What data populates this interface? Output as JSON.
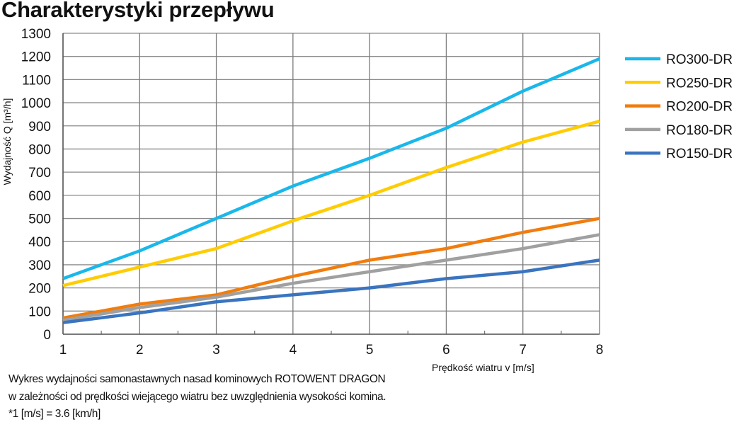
{
  "title": "Charakterystyki przepływu",
  "notes": [
    "Wykres wydajności samonastawnych nasad kominowych ROTOWENT DRAGON",
    "w zależności od prędkości wiejącego wiatru bez uwzględnienia wysokości komina.",
    "*1 [m/s] = 3.6 [km/h]"
  ],
  "chart_data": {
    "type": "line",
    "title": "Charakterystyki przepływu",
    "xlabel": "Prędkość wiatru v [m/s]",
    "ylabel": "Wydajność Q [m³/h]",
    "x": [
      1,
      2,
      3,
      4,
      5,
      6,
      7,
      8
    ],
    "xlim": [
      1,
      8
    ],
    "ylim": [
      0,
      1300
    ],
    "xticks": [
      "1",
      "2",
      "3",
      "4",
      "5",
      "6",
      "7",
      "8"
    ],
    "yticks": [
      "0",
      "100",
      "200",
      "300",
      "400",
      "500",
      "600",
      "700",
      "800",
      "900",
      "1000",
      "1100",
      "1200",
      "1300"
    ],
    "grid": true,
    "legend_position": "right",
    "series": [
      {
        "name": "RO300-DR",
        "color": "#1ab7ea",
        "values": [
          240,
          360,
          500,
          640,
          760,
          890,
          1050,
          1190
        ]
      },
      {
        "name": "RO250-DR",
        "color": "#ffcc00",
        "values": [
          210,
          290,
          370,
          490,
          600,
          720,
          830,
          920
        ]
      },
      {
        "name": "RO200-DR",
        "color": "#f07d0e",
        "values": [
          70,
          130,
          170,
          250,
          320,
          370,
          440,
          500
        ]
      },
      {
        "name": "RO180-DR",
        "color": "#a0a0a0",
        "values": [
          60,
          115,
          160,
          220,
          270,
          320,
          370,
          430
        ]
      },
      {
        "name": "RO150-DR",
        "color": "#3a74bf",
        "values": [
          50,
          92,
          140,
          170,
          200,
          240,
          270,
          320
        ]
      }
    ]
  }
}
